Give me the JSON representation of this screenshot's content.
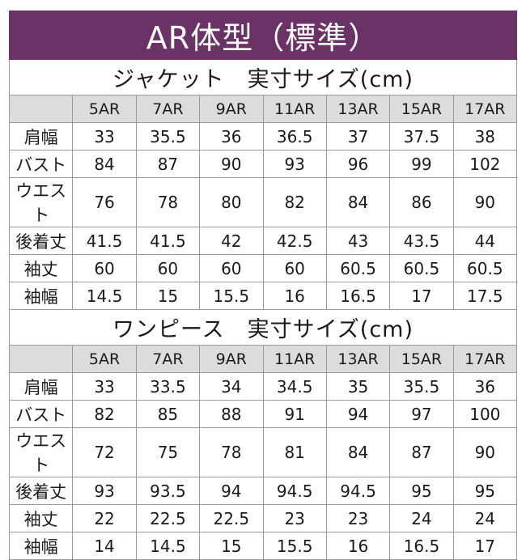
{
  "title": "AR体型（標準）",
  "sections": [
    {
      "heading": "ジャケット　実寸サイズ(cm)",
      "sizes": [
        "5AR",
        "7AR",
        "9AR",
        "11AR",
        "13AR",
        "15AR",
        "17AR"
      ],
      "rows": [
        {
          "label": "肩幅",
          "values": [
            "33",
            "35.5",
            "36",
            "36.5",
            "37",
            "37.5",
            "38"
          ]
        },
        {
          "label": "バスト",
          "values": [
            "84",
            "87",
            "90",
            "93",
            "96",
            "99",
            "102"
          ]
        },
        {
          "label": "ウエスト",
          "values": [
            "76",
            "78",
            "80",
            "82",
            "84",
            "86",
            "90"
          ]
        },
        {
          "label": "後着丈",
          "values": [
            "41.5",
            "41.5",
            "42",
            "42.5",
            "43",
            "43.5",
            "44"
          ]
        },
        {
          "label": "袖丈",
          "values": [
            "60",
            "60",
            "60",
            "60",
            "60.5",
            "60.5",
            "60.5"
          ]
        },
        {
          "label": "袖幅",
          "values": [
            "14.5",
            "15",
            "15.5",
            "16",
            "16.5",
            "17",
            "17.5"
          ]
        }
      ]
    },
    {
      "heading": "ワンピース　実寸サイズ(cm)",
      "sizes": [
        "5AR",
        "7AR",
        "9AR",
        "11AR",
        "13AR",
        "15AR",
        "17AR"
      ],
      "rows": [
        {
          "label": "肩幅",
          "values": [
            "33",
            "33.5",
            "34",
            "34.5",
            "35",
            "35.5",
            "36"
          ]
        },
        {
          "label": "バスト",
          "values": [
            "82",
            "85",
            "88",
            "91",
            "94",
            "97",
            "100"
          ]
        },
        {
          "label": "ウエスト",
          "values": [
            "72",
            "75",
            "78",
            "81",
            "84",
            "87",
            "90"
          ]
        },
        {
          "label": "後着丈",
          "values": [
            "93",
            "93.5",
            "94",
            "94.5",
            "94.5",
            "95",
            "95"
          ]
        },
        {
          "label": "袖丈",
          "values": [
            "22",
            "22.5",
            "22.5",
            "23",
            "23",
            "24",
            "24"
          ]
        },
        {
          "label": "袖幅",
          "values": [
            "14",
            "14.5",
            "15",
            "15.5",
            "16",
            "16.5",
            "17"
          ]
        }
      ]
    }
  ]
}
